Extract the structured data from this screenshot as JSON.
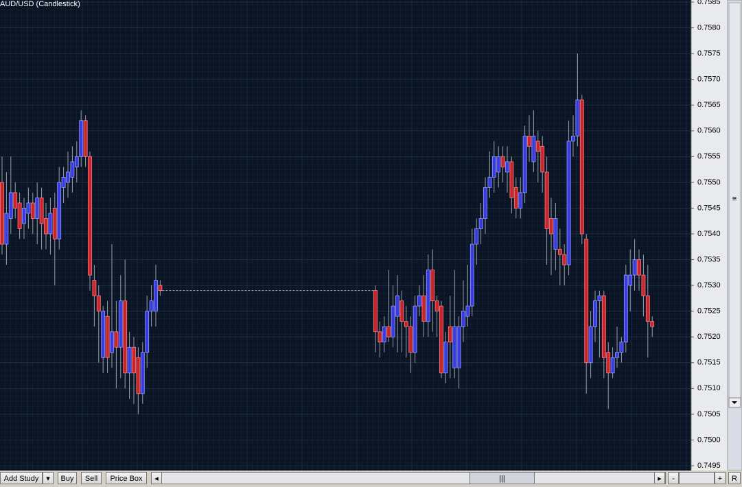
{
  "chart_data": {
    "type": "candlestick",
    "title": "AUD/USD (Candlestick)",
    "up_color": "#3a3ae0",
    "down_color": "#c8242c",
    "grid": true,
    "ylim": [
      0.7495,
      0.7585
    ],
    "yticks": [
      0.7495,
      {
        "value": 0.75,
        "label": "0.7500"
      },
      0.7505,
      {
        "value": 0.751,
        "label": "0.7510"
      },
      0.7515,
      {
        "value": 0.752,
        "label": "0.7520"
      },
      0.7525,
      {
        "value": 0.753,
        "label": "0.7530"
      },
      0.7535,
      {
        "value": 0.754,
        "label": "0.7540"
      },
      0.7545,
      {
        "value": 0.755,
        "label": "0.7550"
      },
      0.7555,
      {
        "value": 0.756,
        "label": "0.7560"
      },
      0.7565,
      {
        "value": 0.757,
        "label": "0.7570"
      },
      0.7575,
      {
        "value": 0.758,
        "label": "0.7580"
      },
      0.7585
    ],
    "candles": [
      [
        0.755,
        0.7555,
        0.7536,
        0.7538
      ],
      [
        0.7538,
        0.7552,
        0.7534,
        0.7544
      ],
      [
        0.7543,
        0.7555,
        0.754,
        0.7548
      ],
      [
        0.7548,
        0.755,
        0.7543,
        0.7545
      ],
      [
        0.7546,
        0.7548,
        0.7539,
        0.7541
      ],
      [
        0.7542,
        0.7547,
        0.7539,
        0.7545
      ],
      [
        0.7544,
        0.7549,
        0.7541,
        0.7546
      ],
      [
        0.7546,
        0.7548,
        0.754,
        0.7543
      ],
      [
        0.7543,
        0.755,
        0.7538,
        0.7547
      ],
      [
        0.7547,
        0.7549,
        0.7537,
        0.7542
      ],
      [
        0.7543,
        0.7546,
        0.7537,
        0.754
      ],
      [
        0.754,
        0.7547,
        0.7536,
        0.7544
      ],
      [
        0.7545,
        0.7548,
        0.753,
        0.7539
      ],
      [
        0.7539,
        0.7553,
        0.7537,
        0.755
      ],
      [
        0.7549,
        0.7553,
        0.7546,
        0.7551
      ],
      [
        0.755,
        0.7556,
        0.7547,
        0.7552
      ],
      [
        0.7551,
        0.7557,
        0.7548,
        0.7554
      ],
      [
        0.7553,
        0.7558,
        0.755,
        0.7555
      ],
      [
        0.7555,
        0.7564,
        0.7553,
        0.7562
      ],
      [
        0.7562,
        0.7563,
        0.7553,
        0.7555
      ],
      [
        0.7555,
        0.7556,
        0.7529,
        0.7532
      ],
      [
        0.7531,
        0.7534,
        0.7522,
        0.7528
      ],
      [
        0.7528,
        0.753,
        0.7515,
        0.7525
      ],
      [
        0.7516,
        0.7526,
        0.7513,
        0.7525
      ],
      [
        0.7524,
        0.7527,
        0.7513,
        0.7516
      ],
      [
        0.7517,
        0.7538,
        0.7514,
        0.7521
      ],
      [
        0.7521,
        0.7527,
        0.751,
        0.7518
      ],
      [
        0.7518,
        0.7532,
        0.7512,
        0.7527
      ],
      [
        0.7527,
        0.7535,
        0.751,
        0.7513
      ],
      [
        0.7513,
        0.7521,
        0.7508,
        0.7518
      ],
      [
        0.7518,
        0.752,
        0.7507,
        0.7513
      ],
      [
        0.7516,
        0.7518,
        0.7505,
        0.7509
      ],
      [
        0.7509,
        0.7519,
        0.7507,
        0.7517
      ],
      [
        0.7517,
        0.7528,
        0.7514,
        0.7525
      ],
      [
        0.7525,
        0.753,
        0.7522,
        0.7527
      ],
      [
        0.7525,
        0.7534,
        0.7522,
        0.7531
      ],
      [
        0.753,
        0.7531,
        0.7528,
        0.7529
      ],
      null,
      null,
      null,
      null,
      null,
      null,
      null,
      null,
      null,
      null,
      null,
      null,
      null,
      null,
      null,
      null,
      null,
      null,
      null,
      null,
      null,
      null,
      null,
      null,
      null,
      null,
      null,
      null,
      null,
      null,
      null,
      null,
      null,
      null,
      null,
      null,
      null,
      null,
      null,
      null,
      null,
      null,
      null,
      null,
      null,
      null,
      null,
      null,
      [
        0.7529,
        0.753,
        0.7517,
        0.7521
      ],
      [
        0.7521,
        0.7523,
        0.7516,
        0.7519
      ],
      [
        0.7519,
        0.7524,
        0.7517,
        0.7522
      ],
      [
        0.7522,
        0.7533,
        0.7519,
        0.752
      ],
      [
        0.752,
        0.753,
        0.7518,
        0.7526
      ],
      [
        0.7524,
        0.7532,
        0.7517,
        0.7528
      ],
      [
        0.7527,
        0.7529,
        0.7517,
        0.7523
      ],
      [
        0.7523,
        0.7526,
        0.7516,
        0.7522
      ],
      [
        0.7522,
        0.7524,
        0.7513,
        0.7517
      ],
      [
        0.7517,
        0.7528,
        0.7515,
        0.7526
      ],
      [
        0.7526,
        0.753,
        0.7524,
        0.7528
      ],
      [
        0.7528,
        0.7532,
        0.752,
        0.7523
      ],
      [
        0.7523,
        0.7536,
        0.752,
        0.7533
      ],
      [
        0.7533,
        0.7537,
        0.7521,
        0.7527
      ],
      [
        0.7527,
        0.7528,
        0.752,
        0.7525
      ],
      [
        0.7526,
        0.7527,
        0.7512,
        0.7513
      ],
      [
        0.7513,
        0.7521,
        0.7511,
        0.7519
      ],
      [
        0.7522,
        0.7528,
        0.7512,
        0.7519
      ],
      [
        0.7514,
        0.7533,
        0.7512,
        0.7522
      ],
      [
        0.7514,
        0.7524,
        0.751,
        0.7522
      ],
      [
        0.7522,
        0.7531,
        0.7519,
        0.7525
      ],
      [
        0.7524,
        0.7534,
        0.7522,
        0.7526
      ],
      [
        0.7526,
        0.7541,
        0.7524,
        0.7538
      ],
      [
        0.7538,
        0.7543,
        0.7534,
        0.7541
      ],
      [
        0.7541,
        0.7546,
        0.7538,
        0.7543
      ],
      [
        0.7543,
        0.7551,
        0.754,
        0.7549
      ],
      [
        0.7549,
        0.7556,
        0.7547,
        0.7551
      ],
      [
        0.7551,
        0.7558,
        0.7548,
        0.7555
      ],
      [
        0.7552,
        0.7557,
        0.7549,
        0.7555
      ],
      [
        0.7555,
        0.7557,
        0.755,
        0.7553
      ],
      [
        0.7552,
        0.7557,
        0.7548,
        0.7554
      ],
      [
        0.7554,
        0.7555,
        0.7544,
        0.7547
      ],
      [
        0.7549,
        0.7551,
        0.7543,
        0.7545
      ],
      [
        0.7545,
        0.7551,
        0.7543,
        0.7548
      ],
      [
        0.7548,
        0.7561,
        0.7546,
        0.7559
      ],
      [
        0.7559,
        0.7563,
        0.7554,
        0.7557
      ],
      [
        0.7554,
        0.7564,
        0.7552,
        0.7559
      ],
      [
        0.7558,
        0.756,
        0.755,
        0.7556
      ],
      [
        0.7557,
        0.7559,
        0.7548,
        0.7552
      ],
      [
        0.7552,
        0.7555,
        0.7534,
        0.7541
      ],
      [
        0.7543,
        0.7547,
        0.7532,
        0.754
      ],
      [
        0.7537,
        0.7546,
        0.7533,
        0.7543
      ],
      [
        0.7537,
        0.7541,
        0.753,
        0.7536
      ],
      [
        0.7536,
        0.7538,
        0.753,
        0.7534
      ],
      [
        0.7534,
        0.7562,
        0.7532,
        0.7558
      ],
      [
        0.7558,
        0.7563,
        0.7555,
        0.7559
      ],
      [
        0.7559,
        0.7575,
        0.7557,
        0.7566
      ],
      [
        0.7566,
        0.7567,
        0.7538,
        0.754
      ],
      [
        0.7539,
        0.754,
        0.7509,
        0.7515
      ],
      [
        0.7515,
        0.7525,
        0.7512,
        0.7522
      ],
      [
        0.7522,
        0.7529,
        0.7519,
        0.7527
      ],
      [
        0.7527,
        0.7529,
        0.7516,
        0.7528
      ],
      [
        0.7528,
        0.7529,
        0.7512,
        0.7516
      ],
      [
        0.7517,
        0.7519,
        0.7506,
        0.7513
      ],
      [
        0.7513,
        0.7518,
        0.7512,
        0.7516
      ],
      [
        0.7516,
        0.7522,
        0.7514,
        0.7517
      ],
      [
        0.7517,
        0.752,
        0.7515,
        0.7519
      ],
      [
        0.7519,
        0.7534,
        0.7517,
        0.7532
      ],
      [
        0.753,
        0.7537,
        0.7525,
        0.7532
      ],
      [
        0.7532,
        0.7539,
        0.7529,
        0.7535
      ],
      [
        0.7535,
        0.7537,
        0.7529,
        0.7532
      ],
      [
        0.7532,
        0.7536,
        0.7524,
        0.7528
      ],
      [
        0.7528,
        0.7534,
        0.7516,
        0.7523
      ],
      [
        0.7523,
        0.7524,
        0.752,
        0.7522
      ]
    ]
  },
  "toolbar": {
    "buttons": [
      "Add Study",
      "Buy",
      "Sell",
      "Price Box"
    ],
    "zoom_out": "-",
    "zoom_in": "+",
    "reset": "R"
  }
}
